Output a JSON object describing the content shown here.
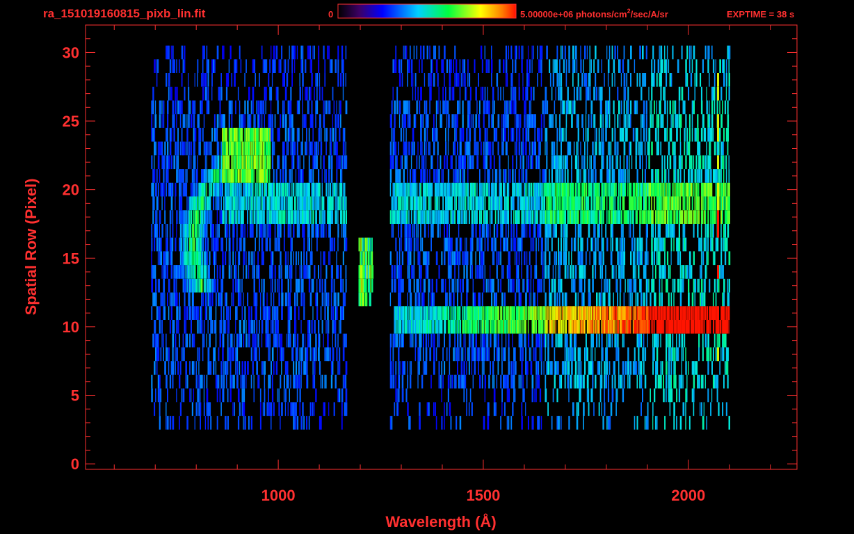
{
  "header": {
    "filename": "ra_151019160815_pixb_lin.fit",
    "colorbar_min_label": "0",
    "colorbar_max_label": "5.00000e+06 photons/cm",
    "colorbar_units_sup": "2",
    "colorbar_units_rest": "/sec/A/sr",
    "exptime": "EXPTIME = 38 s"
  },
  "colors": {
    "background": "#000000",
    "axis": "#ff3030",
    "text": "#ff3030",
    "colormap": [
      "#000000",
      "#4b0082",
      "#0000ff",
      "#00c8ff",
      "#00ff50",
      "#ffff00",
      "#ff8000",
      "#ff0000"
    ]
  },
  "chart_data": {
    "type": "heatmap",
    "xlabel": "Wavelength (Å)",
    "ylabel": "Spatial Row (Pixel)",
    "xlim": [
      530,
      2265
    ],
    "ylim": [
      -0.4,
      32
    ],
    "xticks": [
      1000,
      1500,
      2000
    ],
    "yticks": [
      0,
      5,
      10,
      15,
      20,
      25,
      30
    ],
    "value_range": [
      0,
      5000000
    ],
    "value_units": "photons/cm²/sec/A/sr",
    "data_extent": {
      "x": [
        690,
        2100
      ],
      "rows": [
        3,
        30
      ]
    },
    "gap_x": [
      1165,
      1270
    ],
    "gap_slit": {
      "x": [
        1195,
        1230
      ],
      "rows": [
        12,
        16
      ]
    },
    "features": [
      {
        "label": "curved arc",
        "x": [
          770,
          980
        ],
        "rows": [
          13,
          24
        ],
        "peak_value": 0.6
      },
      {
        "label": "band row 19-20",
        "x": [
          860,
          2030
        ],
        "rows": [
          18,
          21
        ],
        "peak_value": 0.45
      },
      {
        "label": "band row 10-11",
        "x": [
          1280,
          2080
        ],
        "rows": [
          10,
          12
        ],
        "peak_value": 0.95
      },
      {
        "label": "slit line",
        "x": [
          1195,
          1230
        ],
        "rows": [
          12,
          16
        ],
        "peak_value": 0.55
      }
    ]
  }
}
